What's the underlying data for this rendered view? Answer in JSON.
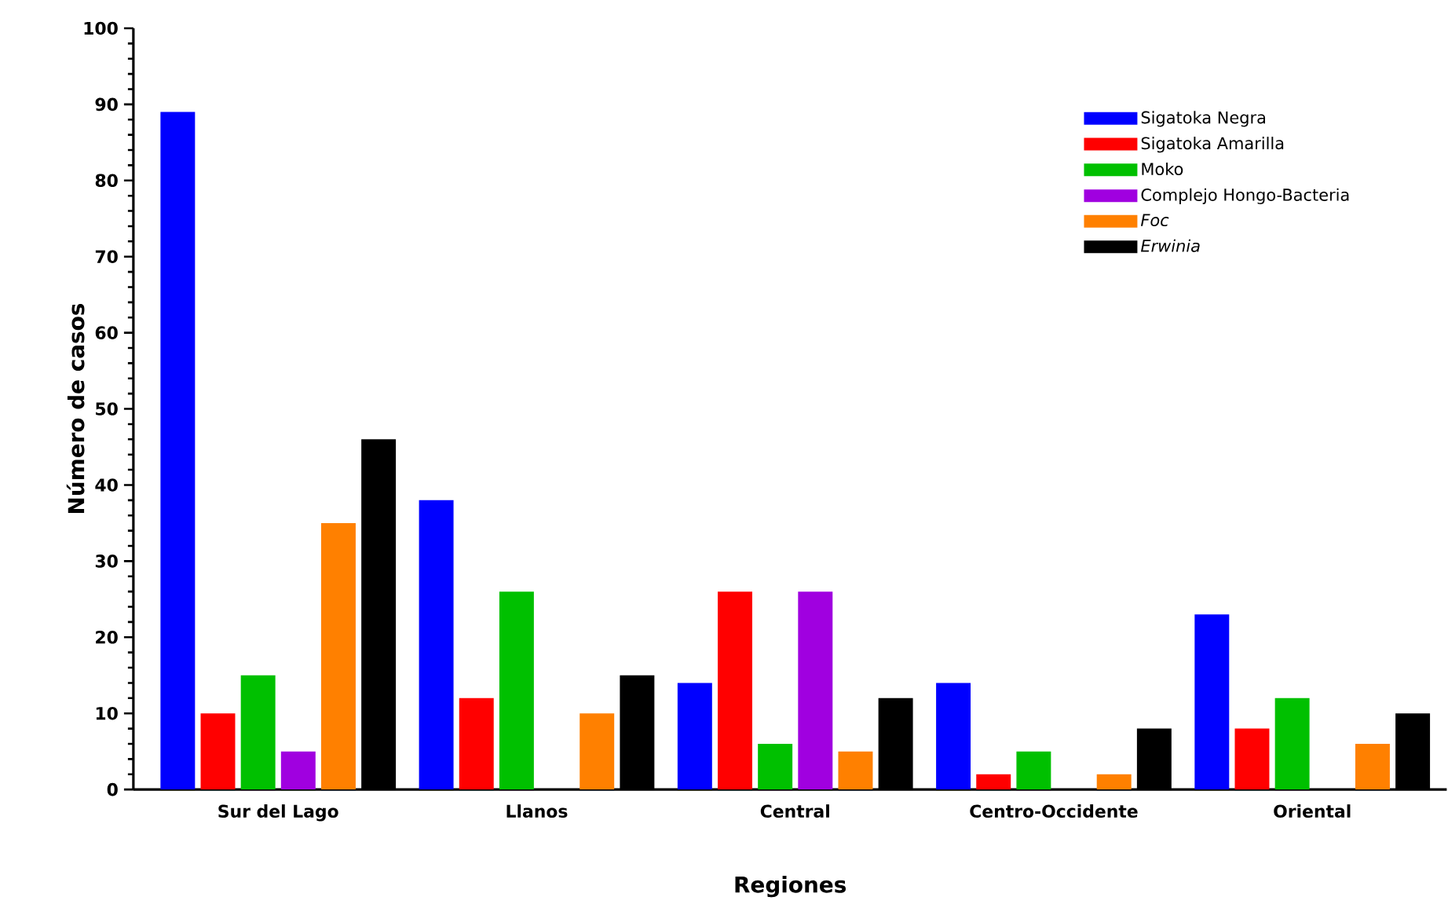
{
  "chart_data": {
    "type": "bar",
    "xlabel": "Regiones",
    "ylabel": "Número de casos",
    "categories": [
      "Sur del Lago",
      "Llanos",
      "Central",
      "Centro-Occidente",
      "Oriental"
    ],
    "series": [
      {
        "name": "Sigatoka Negra",
        "color": "#0000ff",
        "values": [
          89,
          38,
          14,
          14,
          23
        ]
      },
      {
        "name": "Sigatoka Amarilla",
        "color": "#ff0000",
        "values": [
          10,
          12,
          26,
          2,
          8
        ]
      },
      {
        "name": "Moko",
        "color": "#00c000",
        "values": [
          15,
          26,
          6,
          5,
          12
        ]
      },
      {
        "name": "Complejo Hongo-Bacteria",
        "color": "#a000e0",
        "values": [
          5,
          0,
          26,
          0,
          0
        ]
      },
      {
        "name": "*Foc*",
        "color": "#ff8000",
        "values": [
          35,
          10,
          5,
          2,
          6
        ]
      },
      {
        "name": "*Erwinia*",
        "color": "#000000",
        "values": [
          46,
          15,
          12,
          8,
          10
        ]
      }
    ],
    "ylim": [
      0,
      100
    ],
    "yticks": [
      0,
      10,
      20,
      30,
      40,
      50,
      60,
      70,
      80,
      90,
      100
    ],
    "grid": false,
    "legend": "top right"
  }
}
